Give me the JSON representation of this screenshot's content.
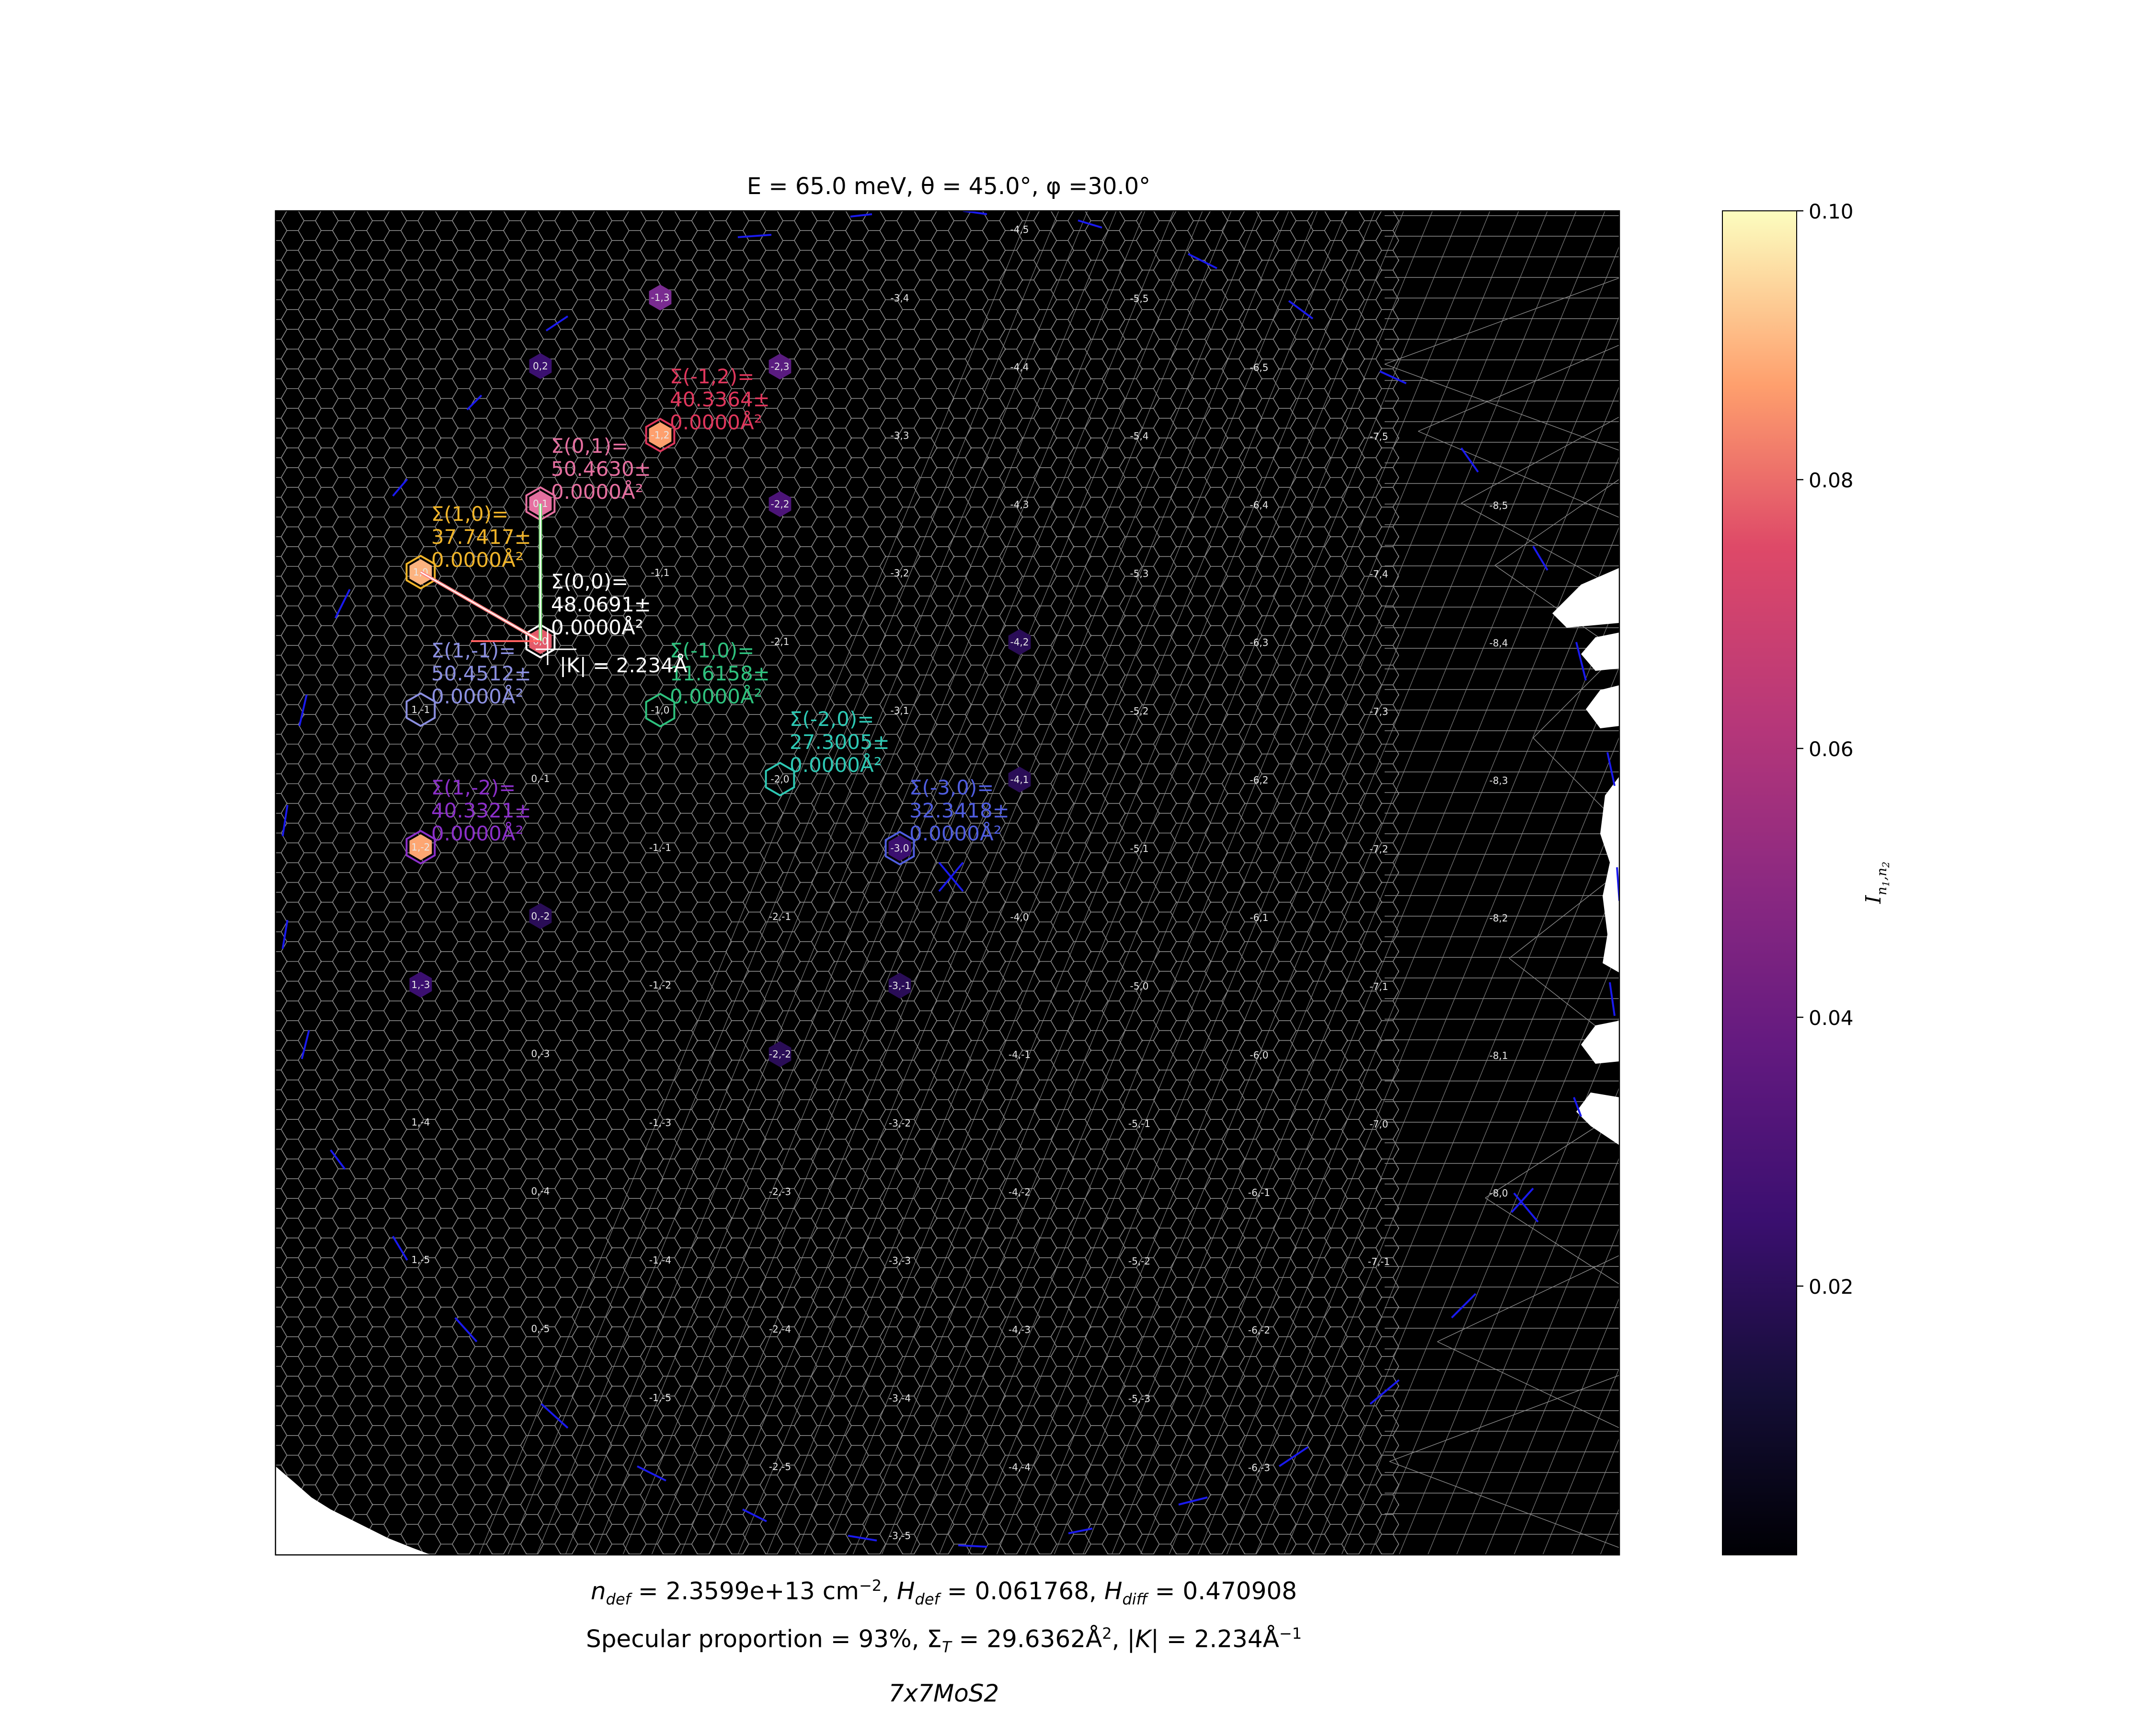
{
  "chart_data": {
    "type": "heatmap",
    "title": "E = 65.0 meV, θ = 45.0°, φ =30.0°",
    "colorbar": {
      "label": "I_{n1,n2}",
      "colormap": "magma",
      "range": [
        0.0,
        0.1
      ],
      "ticks": [
        "0.02",
        "0.04",
        "0.06",
        "0.08",
        "0.10"
      ],
      "tick_values": [
        0.02,
        0.04,
        0.06,
        0.08,
        0.1
      ]
    },
    "lattice": {
      "n1_range": [
        -8,
        1
      ],
      "n2_range": [
        -5,
        5
      ],
      "type": "hexagonal reciprocal lattice"
    },
    "peaks": [
      {
        "label": "1,3"
      },
      {
        "label": "0,2"
      },
      {
        "label": "-1,3"
      },
      {
        "label": "-1,2"
      },
      {
        "label": "-2,3"
      },
      {
        "label": "0,1"
      },
      {
        "label": "1,0"
      },
      {
        "label": "-1,1"
      },
      {
        "label": "-2,2"
      },
      {
        "label": "0,0"
      },
      {
        "label": "-2,1"
      },
      {
        "label": "1,-1"
      },
      {
        "label": "-1,0"
      },
      {
        "label": "-3,1"
      },
      {
        "label": "-2,2"
      },
      {
        "label": "0,-1"
      },
      {
        "label": "-2,0"
      },
      {
        "label": "1,-2"
      },
      {
        "label": "-1,-1"
      },
      {
        "label": "-3,0"
      },
      {
        "label": "-2,-2"
      },
      {
        "label": "-2,-3"
      },
      {
        "label": "0,-2"
      },
      {
        "label": "-2,-1"
      },
      {
        "label": "1,-3"
      },
      {
        "label": "-1,-2"
      },
      {
        "label": "-3,-1"
      },
      {
        "label": "0,-3"
      },
      {
        "label": "-2,-2"
      },
      {
        "label": "1,-4"
      },
      {
        "label": "-1,-3"
      },
      {
        "label": "-3,-2"
      },
      {
        "label": "0,-4"
      },
      {
        "label": "-2,-3"
      },
      {
        "label": "1,-5"
      },
      {
        "label": "-1,-4"
      },
      {
        "label": "-3,-3"
      },
      {
        "label": "0,-5"
      },
      {
        "label": "-2,-4"
      },
      {
        "label": "-1,-5"
      },
      {
        "label": "-3,-4"
      },
      {
        "label": "-2,-5"
      },
      {
        "label": "-3,-5"
      },
      {
        "label": "-4,5"
      },
      {
        "label": "-3,4"
      },
      {
        "label": "-5,5"
      },
      {
        "label": "-4,4"
      },
      {
        "label": "-3,3"
      },
      {
        "label": "-6,5"
      },
      {
        "label": "-5,4"
      },
      {
        "label": "-7,5"
      },
      {
        "label": "-4,3"
      },
      {
        "label": "-6,4"
      },
      {
        "label": "-3,2"
      },
      {
        "label": "-5,3"
      },
      {
        "label": "-8,5"
      },
      {
        "label": "-7,4"
      },
      {
        "label": "-4,2"
      },
      {
        "label": "-6,3"
      },
      {
        "label": "-8,4"
      },
      {
        "label": "-3,1"
      },
      {
        "label": "-5,2"
      },
      {
        "label": "-7,3"
      },
      {
        "label": "-4,1"
      },
      {
        "label": "-6,2"
      },
      {
        "label": "-8,3"
      },
      {
        "label": "-5,1"
      },
      {
        "label": "-7,2"
      },
      {
        "label": "-4,0"
      },
      {
        "label": "-6,1"
      },
      {
        "label": "-8,2"
      },
      {
        "label": "-5,0"
      },
      {
        "label": "-7,1"
      },
      {
        "label": "-4,-1"
      },
      {
        "label": "-6,0"
      },
      {
        "label": "-8,1"
      },
      {
        "label": "-5,-1"
      },
      {
        "label": "-7,0"
      },
      {
        "label": "-4,-2"
      },
      {
        "label": "-6,-1"
      },
      {
        "label": "-8,0"
      },
      {
        "label": "-5,-2"
      },
      {
        "label": "-7,-1"
      },
      {
        "label": "-4,-3"
      },
      {
        "label": "-6,-2"
      },
      {
        "label": "-5,-3"
      },
      {
        "label": "-4,-4"
      },
      {
        "label": "-6,-3"
      },
      {
        "label": "-1,2"
      },
      {
        "label": "-2,-1"
      },
      {
        "label": "-3,-1"
      },
      {
        "label": "-4,2"
      },
      {
        "label": "-4,1"
      }
    ],
    "sigma_annotations": [
      {
        "text": [
          "Σ(-1,2)=",
          "40.3364±",
          "0.0000Å²"
        ],
        "color": "#e0365c"
      },
      {
        "text": [
          "Σ(0,1)=",
          "50.4630±",
          "0.0000Å²"
        ],
        "color": "#e66fa0"
      },
      {
        "text": [
          "Σ(1,0)=",
          "37.7417±",
          "0.0000Å²"
        ],
        "color": "#f0b429"
      },
      {
        "text": [
          "Σ(0,0)=",
          "48.0691±",
          "0.0000Å²"
        ],
        "color": "#ffffff"
      },
      {
        "text": [
          "Σ(1,-1)=",
          "50.4512±",
          "0.0000Å²"
        ],
        "color": "#8b8fe0"
      },
      {
        "text": [
          "Σ(-1,0)=",
          "11.6158±",
          "0.0000Å²"
        ],
        "color": "#2ec27e"
      },
      {
        "text": [
          "Σ(-2,0)=",
          "27.3005±",
          "0.0000Å²"
        ],
        "color": "#2dc9b4"
      },
      {
        "text": [
          "Σ(1,-2)=",
          "40.3321±",
          "0.0000Å²"
        ],
        "color": "#8b2fc9"
      },
      {
        "text": [
          "Σ(-3,0)=",
          "32.3418±",
          "0.0000Å²"
        ],
        "color": "#4f5de0"
      }
    ],
    "k_label": "|K| = 2.234Å"
  },
  "footer": {
    "line1": "n_def = 2.3599e+13 cm^-2, H_def = 0.061768, H_diff = 0.470908",
    "line2": "Specular proportion = 93%, Σ_T = 29.6362Å², |K| = 2.234Å^-1",
    "line3": "7x7MoS2"
  },
  "colors": {
    "background": "#000000",
    "grid": "#8a8a8a",
    "spot_label": "#e8e8e8",
    "segment": "#1a1aee"
  }
}
